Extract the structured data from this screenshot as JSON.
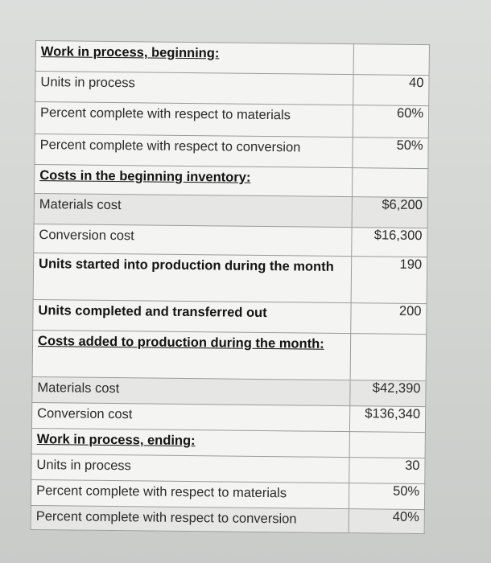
{
  "rows": [
    {
      "label": "Work in process, beginning:",
      "value": "",
      "style": "heading",
      "h": 38
    },
    {
      "label": "Units in process",
      "value": "40",
      "style": "",
      "h": 38
    },
    {
      "label": "Percent complete with respect to materials",
      "value": "60%",
      "style": "",
      "h": 40
    },
    {
      "label": "Percent complete with respect to conversion",
      "value": "50%",
      "style": "",
      "h": 38
    },
    {
      "label": "Costs in the beginning inventory:",
      "value": "",
      "style": "heading",
      "h": 36
    },
    {
      "label": "Materials cost",
      "value": "$6,200",
      "style": "shaded",
      "h": 38
    },
    {
      "label": "Conversion cost",
      "value": "$16,300",
      "style": "",
      "h": 36
    },
    {
      "label": "Units started into production during the month",
      "value": "190",
      "style": "bold",
      "h": 58
    },
    {
      "label": "Units completed and transferred out",
      "value": "200",
      "style": "bold",
      "h": 38
    },
    {
      "label": "Costs added to production during the month:",
      "value": "",
      "style": "heading",
      "h": 58
    },
    {
      "label": "Materials cost",
      "value": "$42,390",
      "style": "shaded",
      "h": 32
    },
    {
      "label": "Conversion cost",
      "value": "$136,340",
      "style": "",
      "h": 32
    },
    {
      "label": "Work in process, ending:",
      "value": "",
      "style": "heading",
      "h": 32
    },
    {
      "label": "Units in process",
      "value": "30",
      "style": "",
      "h": 32
    },
    {
      "label": "Percent complete with respect to materials",
      "value": "50%",
      "style": "",
      "h": 32
    },
    {
      "label": "Percent complete with respect to conversion",
      "value": "40%",
      "style": "shaded",
      "h": 30
    }
  ]
}
